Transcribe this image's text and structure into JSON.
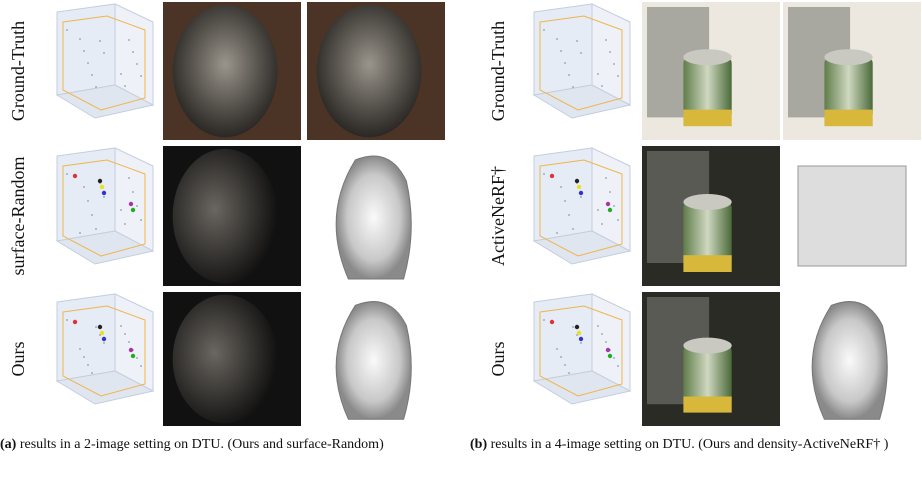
{
  "panels": [
    {
      "rows": [
        "Ground-Truth",
        "surface-Random",
        "Ours"
      ],
      "caption": {
        "label": "(a)",
        "text": "results in a 2-image setting on DTU. (Ours and surface-Random)"
      }
    },
    {
      "rows": [
        "Ground-Truth",
        "ActiveNeRF†",
        "Ours"
      ],
      "caption": {
        "label": "(b)",
        "text": "results in a 4-image setting on DTU. (Ours and density-ActiveNeRF† )"
      }
    }
  ]
}
